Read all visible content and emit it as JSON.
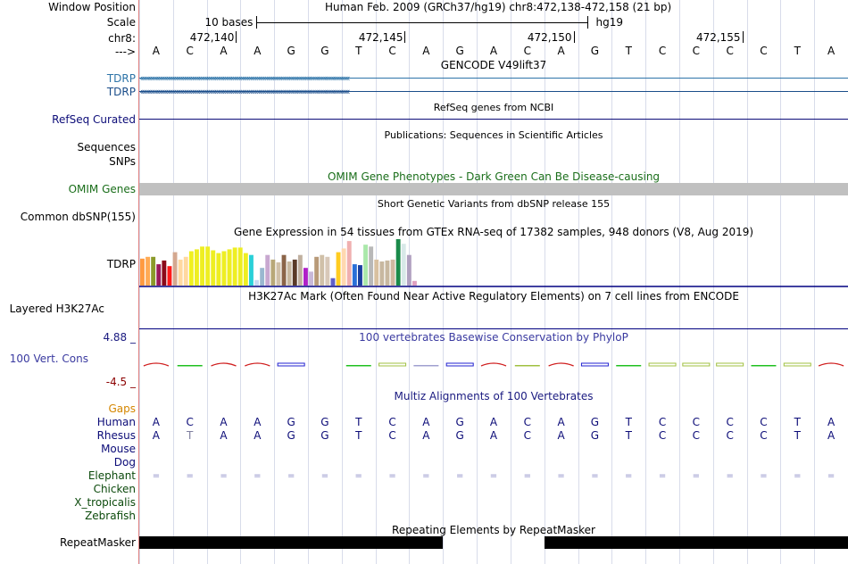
{
  "colors": {
    "gencode": "#2e74a8",
    "tdrp_gencode": "#1a4d8a",
    "refseq": "#0c0c78",
    "omim": "#1a6e1a",
    "cons_label": "#3a3aa0",
    "cons_max": "#1a1a80",
    "cons_min": "#8b0000",
    "gaps": "#d48600",
    "human": "#0c0c78",
    "other_species": "#0c4a0c",
    "grid": "#d8dcea"
  },
  "window_position": {
    "label": "Window Position",
    "text": "Human Feb. 2009 (GRCh37/hg19)    chr8:472,138-472,158 (21 bp)"
  },
  "scale": {
    "label": "Scale",
    "bar_text": "10 bases",
    "assembly": "hg19",
    "start_base": 3,
    "end_base": 13
  },
  "ruler": {
    "label": "chr8:",
    "ticks": [
      {
        "base": 2,
        "text": "472,140"
      },
      {
        "base": 7,
        "text": "472,145"
      },
      {
        "base": 12,
        "text": "472,150"
      },
      {
        "base": 17,
        "text": "472,155"
      }
    ]
  },
  "sequence": {
    "label": "--->",
    "bases": [
      "A",
      "C",
      "A",
      "A",
      "G",
      "G",
      "T",
      "C",
      "A",
      "G",
      "A",
      "C",
      "A",
      "G",
      "T",
      "C",
      "C",
      "C",
      "C",
      "T",
      "A"
    ]
  },
  "gencode": {
    "title": "GENCODE V49lift37",
    "rows": [
      {
        "label": "TDRP"
      },
      {
        "label": "TDRP"
      }
    ],
    "strand": "‹"
  },
  "refseq": {
    "title": "RefSeq genes from NCBI",
    "label": "RefSeq Curated"
  },
  "publications": {
    "title": "Publications: Sequences in Scientific Articles",
    "labels": [
      "Sequences",
      "SNPs"
    ]
  },
  "omim": {
    "title": "OMIM Gene Phenotypes - Dark Green Can Be Disease-causing",
    "label": "OMIM Genes"
  },
  "dbsnp": {
    "title": "Short Genetic Variants from dbSNP release 155",
    "label": "Common dbSNP(155)"
  },
  "gtex": {
    "title": "Gene Expression in 54 tissues from GTEx RNA-seq of 17382 samples, 948 donors (V8, Aug 2019)",
    "label": "TDRP",
    "bars": [
      {
        "c": "#ff9a40",
        "v": 0.58
      },
      {
        "c": "#ffaa55",
        "v": 0.62
      },
      {
        "c": "#8b9a2a",
        "v": 0.62
      },
      {
        "c": "#9a1a5a",
        "v": 0.46
      },
      {
        "c": "#8b0a1a",
        "v": 0.54
      },
      {
        "c": "#ff1a1a",
        "v": 0.42
      },
      {
        "c": "#d4a890",
        "v": 0.72
      },
      {
        "c": "#ffd8a0",
        "v": 0.56
      },
      {
        "c": "#ffd8a0",
        "v": 0.62
      },
      {
        "c": "#f0f020",
        "v": 0.74
      },
      {
        "c": "#eeee22",
        "v": 0.78
      },
      {
        "c": "#eeee22",
        "v": 0.84
      },
      {
        "c": "#eeee22",
        "v": 0.84
      },
      {
        "c": "#eeee22",
        "v": 0.76
      },
      {
        "c": "#eeee22",
        "v": 0.7
      },
      {
        "c": "#eeee22",
        "v": 0.74
      },
      {
        "c": "#eeee22",
        "v": 0.78
      },
      {
        "c": "#eeee22",
        "v": 0.82
      },
      {
        "c": "#eeee22",
        "v": 0.82
      },
      {
        "c": "#eeee22",
        "v": 0.7
      },
      {
        "c": "#2ad0d8",
        "v": 0.66
      },
      {
        "c": "#c8d8f0",
        "v": 0.12
      },
      {
        "c": "#9ab8d0",
        "v": 0.38
      },
      {
        "c": "#c8a8d0",
        "v": 0.66
      },
      {
        "c": "#b8a878",
        "v": 0.56
      },
      {
        "c": "#d0c0a8",
        "v": 0.5
      },
      {
        "c": "#8b6448",
        "v": 0.66
      },
      {
        "c": "#c8b8a0",
        "v": 0.52
      },
      {
        "c": "#5a3a28",
        "v": 0.56
      },
      {
        "c": "#c0b0a0",
        "v": 0.66
      },
      {
        "c": "#b020c8",
        "v": 0.38
      },
      {
        "c": "#c8b8d8",
        "v": 0.3
      },
      {
        "c": "#b89a78",
        "v": 0.62
      },
      {
        "c": "#d0c0a8",
        "v": 0.66
      },
      {
        "c": "#d8c8b8",
        "v": 0.62
      },
      {
        "c": "#6060c8",
        "v": 0.16
      },
      {
        "c": "#ffcc20",
        "v": 0.72
      },
      {
        "c": "#ffd8b0",
        "v": 0.8
      },
      {
        "c": "#f0b0b0",
        "v": 0.96
      },
      {
        "c": "#2a70d8",
        "v": 0.46
      },
      {
        "c": "#1a40a0",
        "v": 0.44
      },
      {
        "c": "#aae8aa",
        "v": 0.88
      },
      {
        "c": "#b8b8b8",
        "v": 0.84
      },
      {
        "c": "#d8c0a0",
        "v": 0.56
      },
      {
        "c": "#c8b8a0",
        "v": 0.52
      },
      {
        "c": "#c8b8a0",
        "v": 0.54
      },
      {
        "c": "#d0b8a0",
        "v": 0.56
      },
      {
        "c": "#1a8a4a",
        "v": 1.0
      },
      {
        "c": "#d8e8e8",
        "v": 0.9
      },
      {
        "c": "#b0a0c0",
        "v": 0.66
      },
      {
        "c": "#e0a0c0",
        "v": 0.1
      }
    ]
  },
  "h3k27ac": {
    "title": "H3K27Ac Mark (Often Found Near Active Regulatory Elements) on 7 cell lines from ENCODE",
    "label": "Layered H3K27Ac"
  },
  "conservation": {
    "title": "100 vertebrates Basewise Conservation by PhyloP",
    "label": "100 Vert. Cons",
    "max": "4.88 _",
    "min": "-4.5 _",
    "marks": [
      {
        "base": 0,
        "type": "arc",
        "c": "#d02020"
      },
      {
        "base": 1,
        "type": "dash",
        "c": "#20c020"
      },
      {
        "base": 2,
        "type": "arc",
        "c": "#d02020"
      },
      {
        "base": 3,
        "type": "arc",
        "c": "#d02020"
      },
      {
        "base": 4,
        "type": "box",
        "c": "#2020d0"
      },
      {
        "base": 6,
        "type": "dash",
        "c": "#20c020"
      },
      {
        "base": 7,
        "type": "box",
        "c": "#a0c040"
      },
      {
        "base": 8,
        "type": "dash",
        "c": "#a0a0d0"
      },
      {
        "base": 9,
        "type": "box",
        "c": "#2020d0"
      },
      {
        "base": 10,
        "type": "arc",
        "c": "#d02020"
      },
      {
        "base": 11,
        "type": "dash",
        "c": "#a0c040"
      },
      {
        "base": 12,
        "type": "arc",
        "c": "#d02020"
      },
      {
        "base": 13,
        "type": "box",
        "c": "#2020d0"
      },
      {
        "base": 14,
        "type": "dash",
        "c": "#20c020"
      },
      {
        "base": 15,
        "type": "box",
        "c": "#a0c040"
      },
      {
        "base": 16,
        "type": "box",
        "c": "#a0c040"
      },
      {
        "base": 17,
        "type": "box",
        "c": "#a0c040"
      },
      {
        "base": 18,
        "type": "dash",
        "c": "#20c020"
      },
      {
        "base": 19,
        "type": "box",
        "c": "#a0c040"
      },
      {
        "base": 20,
        "type": "arc",
        "c": "#d02020"
      }
    ]
  },
  "multiz": {
    "title": "Multiz Alignments of 100 Vertebrates",
    "species": [
      {
        "label": "Gaps",
        "seq": ""
      },
      {
        "label": "Human",
        "seq": "ACAAGGTCAGACAGTCCCCTA"
      },
      {
        "label": "Rhesus",
        "seq": "ATAAGGTCAGACAGTCCCCTA"
      },
      {
        "label": "Mouse",
        "seq": ""
      },
      {
        "label": "Dog",
        "seq": ""
      },
      {
        "label": "Elephant",
        "seq": "====================="
      },
      {
        "label": "Chicken",
        "seq": ""
      },
      {
        "label": "X_tropicalis",
        "seq": ""
      },
      {
        "label": "Zebrafish",
        "seq": ""
      }
    ]
  },
  "repeatmasker": {
    "title": "Repeating Elements by RepeatMasker",
    "label": "RepeatMasker"
  }
}
